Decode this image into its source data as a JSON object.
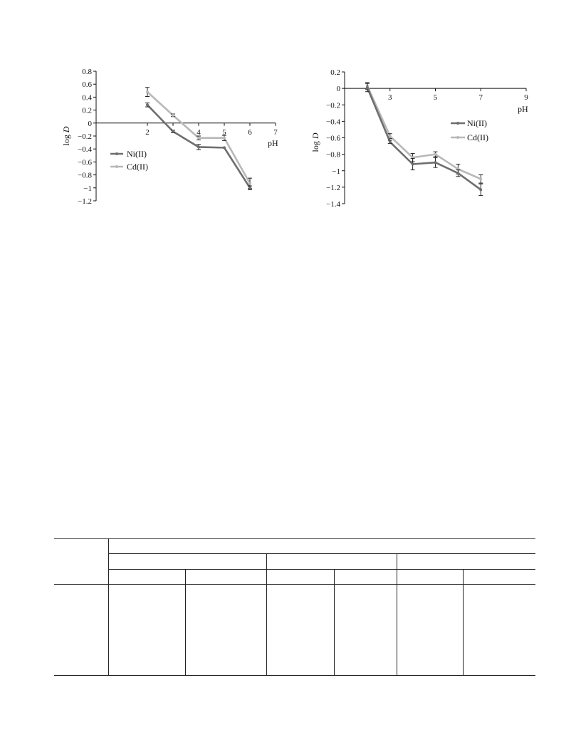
{
  "chart_data": [
    {
      "type": "line",
      "title": "",
      "xlabel": "pH",
      "ylabel": "log D",
      "xlim": [
        0,
        7
      ],
      "ylim": [
        -1.2,
        0.8
      ],
      "xticks": [
        2,
        3,
        4,
        5,
        6,
        7
      ],
      "xtick_labels": [
        "2",
        "",
        "4",
        "5",
        "6",
        "7"
      ],
      "yticks": [
        0.8,
        0.6,
        0.4,
        0.2,
        0,
        -0.2,
        -0.4,
        -0.6,
        -0.8,
        -1,
        -1.2
      ],
      "ytick_labels": [
        "0.8",
        "0.6",
        "0.4",
        "0.2",
        "0",
        "−0.2",
        "−0.4",
        "−0.6",
        "−0.8",
        "−1",
        "−1.2"
      ],
      "legend_position": "lower-left",
      "series": [
        {
          "name": "Ni(II)",
          "color": "#6e6e6e",
          "x": [
            2,
            3,
            4,
            5,
            6
          ],
          "y": [
            0.28,
            -0.13,
            -0.37,
            -0.38,
            -1.0
          ],
          "err": [
            0.03,
            0.02,
            0.04,
            0.0,
            0.03
          ]
        },
        {
          "name": "Cd(II)",
          "color": "#b8b8b8",
          "x": [
            2,
            3,
            4,
            5,
            6
          ],
          "y": [
            0.48,
            0.12,
            -0.23,
            -0.23,
            -0.93
          ],
          "err": [
            0.07,
            0.02,
            0.03,
            0.04,
            0.08
          ]
        }
      ]
    },
    {
      "type": "line",
      "title": "",
      "xlabel": "pH",
      "ylabel": "log D",
      "xlim": [
        1,
        9
      ],
      "ylim": [
        -1.4,
        0.2
      ],
      "xticks": [
        1,
        3,
        5,
        7,
        9
      ],
      "xtick_labels": [
        "",
        "3",
        "5",
        "7",
        "9"
      ],
      "yticks": [
        0.2,
        0,
        -0.2,
        -0.4,
        -0.6,
        -0.8,
        -1,
        -1.2,
        -1.4
      ],
      "ytick_labels": [
        "0.2",
        "0",
        "−0.2",
        "−0.4",
        "−0.6",
        "−0.8",
        "−1",
        "−1.2",
        "−1.4"
      ],
      "legend_position": "right",
      "series": [
        {
          "name": "Ni(II)",
          "color": "#6e6e6e",
          "x": [
            2,
            3,
            4,
            5,
            6,
            7
          ],
          "y": [
            0.01,
            -0.65,
            -0.92,
            -0.9,
            -1.03,
            -1.23
          ],
          "err": [
            0.05,
            0.02,
            0.07,
            0.06,
            0.04,
            0.07
          ]
        },
        {
          "name": "Cd(II)",
          "color": "#b8b8b8",
          "x": [
            2,
            3,
            4,
            5,
            6,
            7
          ],
          "y": [
            0.03,
            -0.58,
            -0.84,
            -0.8,
            -0.98,
            -1.1
          ],
          "err": [
            0.04,
            0.03,
            0.05,
            0.03,
            0.06,
            0.05
          ]
        }
      ]
    }
  ]
}
